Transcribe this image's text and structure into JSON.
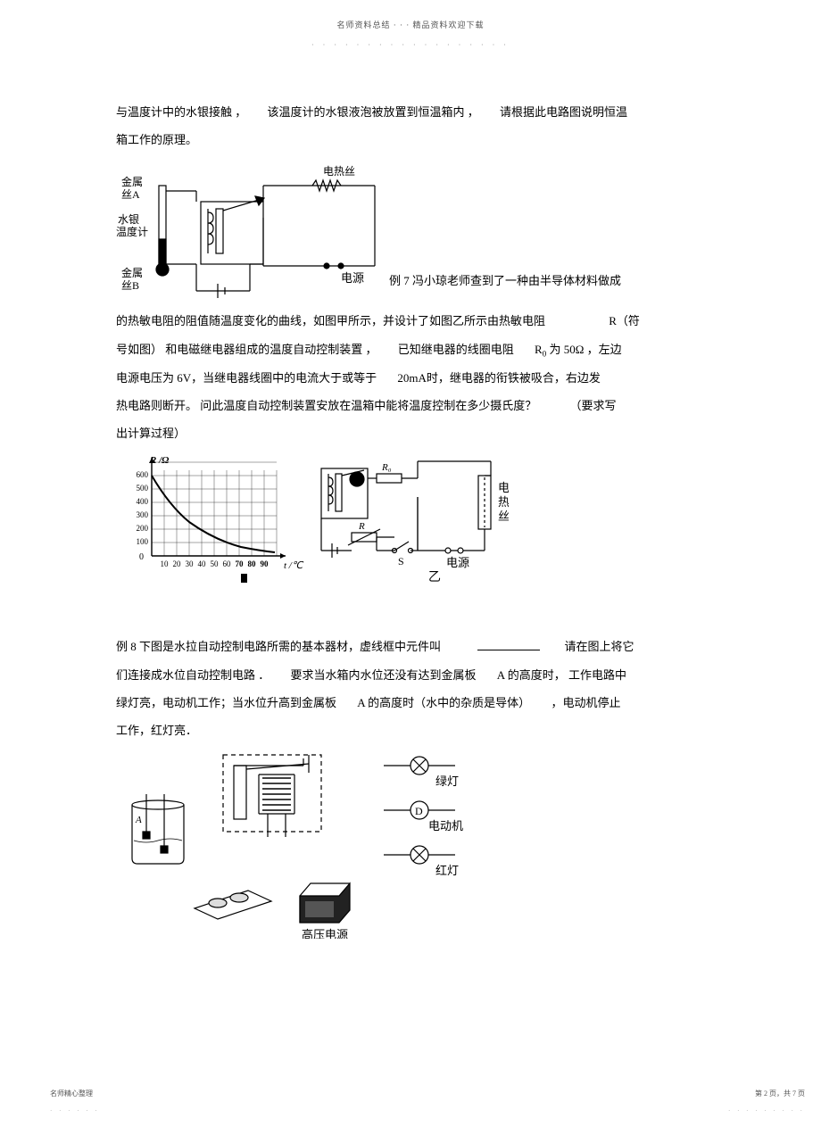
{
  "header": {
    "text": "名师资料总结  ·  ·  · 精品资料欢迎下载",
    "dots": "· · · · · · · · · · · · · · · · · ·"
  },
  "body": {
    "p1_a": "与温度计中的水银接触 ，",
    "p1_b": "该温度计的水银液泡被放置到恒温箱内 ，",
    "p1_c": "请根据此电路图说明恒温",
    "p2": "箱工作的原理。",
    "fig1": {
      "labels": {
        "wire_a": "金属\n丝A",
        "thermo": "水银\n温度计",
        "wire_b": "金属\n丝B",
        "heater": "电热丝",
        "power": "电源"
      }
    },
    "ex7_intro": "例 7 冯小琼老师查到了一种由半导体材料做成",
    "p3_a": "的热敏电阻的阻值随温度变化的曲线，如图甲所示，并设计了如图乙所示由热敏电阻",
    "p3_b": "R（符",
    "p4_a": "号如图）  和电磁继电器组成的温度自动控制装置 ，",
    "p4_b": "已知继电器的线圈电阻",
    "p4_c": "R",
    "p4_c_sub": "0",
    "p4_d": " 为  50Ω  ，左边",
    "p5_a": "电源电压为   6V，当继电器线圈中的电流大于或等于",
    "p5_b": "20mA时，继电器的衔铁被吸合，右边发",
    "p6_a": "热电路则断开。   问此温度自动控制装置安放在温箱中能将温度控制在多少摄氏度？",
    "p6_b": "（要求写",
    "p7": "出计算过程）",
    "fig2": {
      "chart": {
        "x_label": "t /℃",
        "y_label": "R /Ω",
        "x_ticks": [
          "10",
          "20",
          "30",
          "40",
          "50",
          "60",
          "70",
          "80",
          "90"
        ],
        "y_ticks": [
          "100",
          "200",
          "300",
          "400",
          "500",
          "600"
        ],
        "curve": [
          [
            0,
            600
          ],
          [
            10,
            460
          ],
          [
            20,
            360
          ],
          [
            30,
            290
          ],
          [
            40,
            230
          ],
          [
            50,
            190
          ],
          [
            60,
            160
          ],
          [
            70,
            140
          ],
          [
            80,
            125
          ],
          [
            90,
            115
          ]
        ]
      },
      "circuit": {
        "r0": "R₀",
        "r": "R",
        "s": "S",
        "heater": "电\n热\n丝",
        "power": "电源",
        "label_yi": "乙"
      }
    },
    "ex8_a": "例  8  下图是水拉自动控制电路所需的基本器材，虚线框中元件叫",
    "ex8_b": "请在图上将它",
    "p9_a": "们连接成水位自动控制电路 ．",
    "p9_b": "要求当水箱内水位还没有达到金属板",
    "p9_c": "A 的高度时，  工作电路中",
    "p10_a": "绿灯亮，电动机工作；当水位升高到金属板",
    "p10_b": "A 的高度时（水中的杂质是导体）",
    "p10_c": "，电动机停止",
    "p11": "工作，红灯亮．",
    "fig3": {
      "labels": {
        "A": "A",
        "green": "绿灯",
        "motor": "电动机",
        "red": "红灯",
        "hv": "高压电源"
      }
    }
  },
  "footer": {
    "left": "名师精心整理",
    "left_dots": "· · · · · ·",
    "right": "第 2 页，共 7 页",
    "right_dots": "· · · · · · · · ·"
  },
  "colors": {
    "text": "#000000",
    "bg": "#ffffff",
    "stroke": "#000000"
  }
}
